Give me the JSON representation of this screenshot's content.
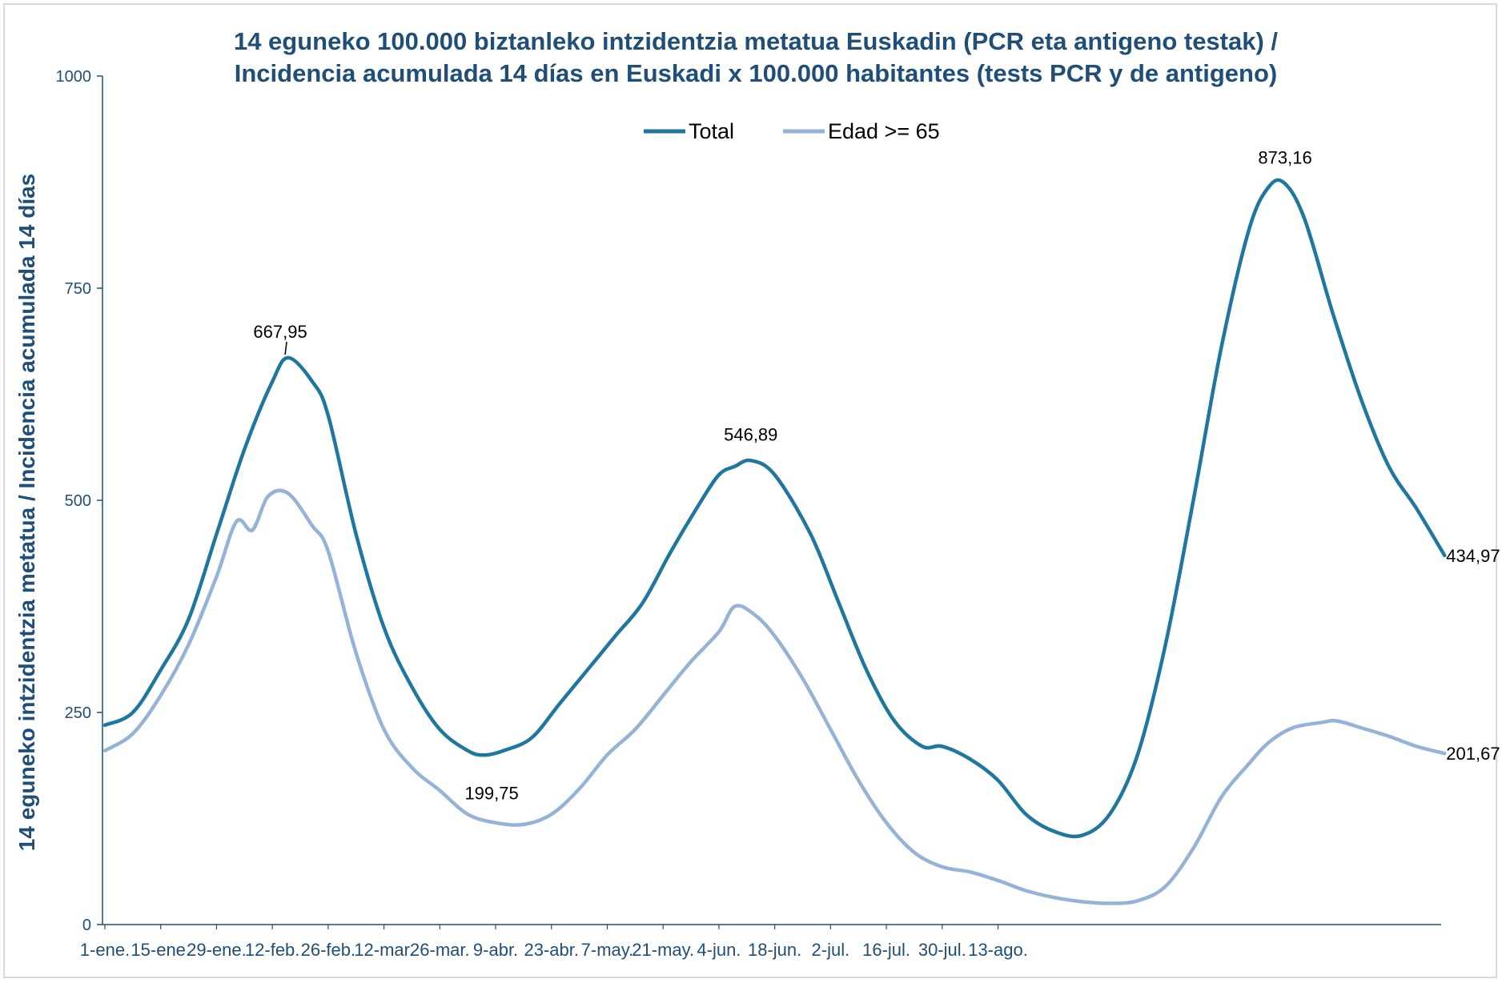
{
  "chart_data": {
    "type": "line",
    "title_line1": "14 eguneko 100.000 biztanleko intzidentzia metatua Euskadin (PCR eta antigeno testak) /",
    "title_line2": "Incidencia acumulada  14 días en Euskadi x 100.000 habitantes (tests PCR y de antigeno)",
    "ylabel": "14 eguneko intzidentzia metatua / Incidencia acumulada  14 días",
    "xlabel": "",
    "ylim": [
      0,
      1000
    ],
    "yticks": [
      "0",
      "250",
      "500",
      "750",
      "1000"
    ],
    "xticks": [
      "1-ene.",
      "15-ene.",
      "29-ene.",
      "12-feb.",
      "26-feb.",
      "12-mar.",
      "26-mar.",
      "9-abr.",
      "23-abr.",
      "7-may.",
      "21-may.",
      "4-jun.",
      "18-jun.",
      "2-jul.",
      "16-jul.",
      "30-jul.",
      "13-ago."
    ],
    "grid": false,
    "legend_position": "top-center",
    "series": [
      {
        "name": "Total",
        "color": "#1f77a0",
        "points": [
          [
            0,
            235
          ],
          [
            7,
            250
          ],
          [
            14,
            300
          ],
          [
            21,
            360
          ],
          [
            28,
            460
          ],
          [
            35,
            560
          ],
          [
            42,
            640
          ],
          [
            46,
            668
          ],
          [
            52,
            640
          ],
          [
            56,
            600
          ],
          [
            63,
            460
          ],
          [
            70,
            350
          ],
          [
            77,
            280
          ],
          [
            84,
            230
          ],
          [
            91,
            205
          ],
          [
            95,
            199.75
          ],
          [
            100,
            205
          ],
          [
            107,
            220
          ],
          [
            114,
            260
          ],
          [
            121,
            300
          ],
          [
            128,
            340
          ],
          [
            135,
            380
          ],
          [
            142,
            440
          ],
          [
            149,
            495
          ],
          [
            154,
            530
          ],
          [
            158,
            540
          ],
          [
            162,
            546.89
          ],
          [
            168,
            530
          ],
          [
            177,
            460
          ],
          [
            184,
            380
          ],
          [
            191,
            300
          ],
          [
            198,
            240
          ],
          [
            205,
            210
          ],
          [
            210,
            210
          ],
          [
            217,
            195
          ],
          [
            224,
            170
          ],
          [
            231,
            130
          ],
          [
            238,
            110
          ],
          [
            245,
            105
          ],
          [
            252,
            130
          ],
          [
            259,
            200
          ],
          [
            266,
            330
          ],
          [
            273,
            500
          ],
          [
            280,
            680
          ],
          [
            287,
            820
          ],
          [
            292,
            870
          ],
          [
            296,
            873.16
          ],
          [
            301,
            830
          ],
          [
            308,
            720
          ],
          [
            315,
            620
          ],
          [
            322,
            540
          ],
          [
            329,
            490
          ],
          [
            336,
            434.97
          ]
        ],
        "labels": [
          {
            "x": 46,
            "y": 667.95,
            "text": "667,95"
          },
          {
            "x": 95,
            "y": 199.75,
            "text": "199,75"
          },
          {
            "x": 162,
            "y": 546.89,
            "text": "546,89"
          },
          {
            "x": 296,
            "y": 873.16,
            "text": "873,16"
          },
          {
            "x": 336,
            "y": 434.97,
            "text": "434,97"
          }
        ]
      },
      {
        "name": "Edad >= 65",
        "color": "#95b3d7",
        "points": [
          [
            0,
            205
          ],
          [
            7,
            225
          ],
          [
            14,
            270
          ],
          [
            21,
            330
          ],
          [
            28,
            410
          ],
          [
            33,
            475
          ],
          [
            37,
            465
          ],
          [
            41,
            505
          ],
          [
            46,
            508
          ],
          [
            52,
            470
          ],
          [
            56,
            440
          ],
          [
            63,
            320
          ],
          [
            70,
            230
          ],
          [
            77,
            185
          ],
          [
            84,
            158
          ],
          [
            91,
            130
          ],
          [
            98,
            120
          ],
          [
            105,
            118
          ],
          [
            112,
            130
          ],
          [
            119,
            160
          ],
          [
            126,
            200
          ],
          [
            133,
            230
          ],
          [
            140,
            270
          ],
          [
            147,
            310
          ],
          [
            154,
            345
          ],
          [
            158,
            375
          ],
          [
            163,
            365
          ],
          [
            168,
            340
          ],
          [
            175,
            290
          ],
          [
            182,
            230
          ],
          [
            189,
            170
          ],
          [
            196,
            120
          ],
          [
            203,
            85
          ],
          [
            210,
            68
          ],
          [
            217,
            62
          ],
          [
            224,
            52
          ],
          [
            231,
            40
          ],
          [
            238,
            32
          ],
          [
            245,
            27
          ],
          [
            252,
            25
          ],
          [
            259,
            28
          ],
          [
            266,
            45
          ],
          [
            273,
            90
          ],
          [
            280,
            150
          ],
          [
            287,
            190
          ],
          [
            292,
            215
          ],
          [
            298,
            232
          ],
          [
            305,
            238
          ],
          [
            309,
            240
          ],
          [
            315,
            232
          ],
          [
            322,
            222
          ],
          [
            329,
            210
          ],
          [
            336,
            201.67
          ]
        ],
        "labels": [
          {
            "x": 336,
            "y": 201.67,
            "text": "201,67"
          }
        ]
      }
    ]
  }
}
